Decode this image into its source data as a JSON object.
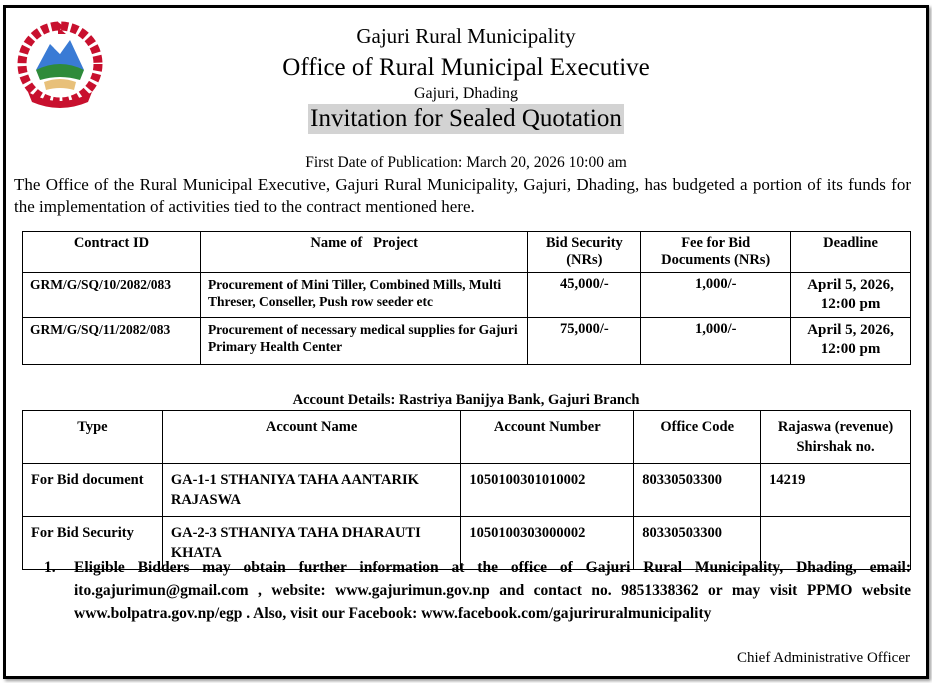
{
  "header": {
    "line1": "Gajuri Rural Municipality",
    "line2": "Office of Rural Municipal Executive",
    "line3": "Gajuri, Dhading",
    "title": "Invitation for Sealed Quotation",
    "emblem": "Government of Nepal emblem"
  },
  "publication": "First Date of Publication: March 20, 2026 10:00 am",
  "intro": "The Office of the Rural Municipal Executive, Gajuri Rural Municipality, Gajuri, Dhading, has budgeted a portion of its funds for the implementation of activities tied to the contract mentioned here.",
  "contracts": {
    "headers": [
      "Contract ID",
      "Name of   Project",
      "Bid Security (NRs)",
      "Fee for Bid Documents (NRs)",
      "Deadline"
    ],
    "rows": [
      {
        "id": "GRM/G/SQ/10/2082/083",
        "name": "Procurement of Mini Tiller, Combined Mills, Multi Threser, Conseller, Push row seeder etc",
        "security": "45,000/-",
        "fee": "1,000/-",
        "deadline": "April 5, 2026, 12:00 pm"
      },
      {
        "id": "GRM/G/SQ/11/2082/083",
        "name": "Procurement of necessary medical supplies for Gajuri Primary Health Center",
        "security": "75,000/-",
        "fee": "1,000/-",
        "deadline": "April 5, 2026, 12:00 pm"
      }
    ]
  },
  "accounts": {
    "title": "Account Details: Rastriya Banijya Bank, Gajuri Branch",
    "headers": [
      "Type",
      "Account Name",
      "Account Number",
      "Office Code",
      "Rajaswa (revenue) Shirshak no."
    ],
    "rows": [
      {
        "type": "For Bid document",
        "name": "GA-1-1 STHANIYA TAHA AANTARIK RAJASWA",
        "number": "1050100301010002",
        "code": "80330503300",
        "shirshak": "14219"
      },
      {
        "type": "For Bid Security",
        "name": "GA-2-3 STHANIYA TAHA DHARAUTI KHATA",
        "number": "1050100303000002",
        "code": "80330503300",
        "shirshak": ""
      }
    ]
  },
  "notes": [
    {
      "num": "1.",
      "text": "Eligible Bidders may obtain further information at the office of Gajuri Rural Municipality, Dhading, email: ito.gajurimun@gmail.com   , website: www.gajurimun.gov.np   and contact no. 9851338362 or may visit PPMO website www.bolpatra.gov.np/egp . Also, visit our Facebook:  www.facebook.com/gajuriruralmunicipality"
    }
  ],
  "signature": "Chief Administrative Officer"
}
